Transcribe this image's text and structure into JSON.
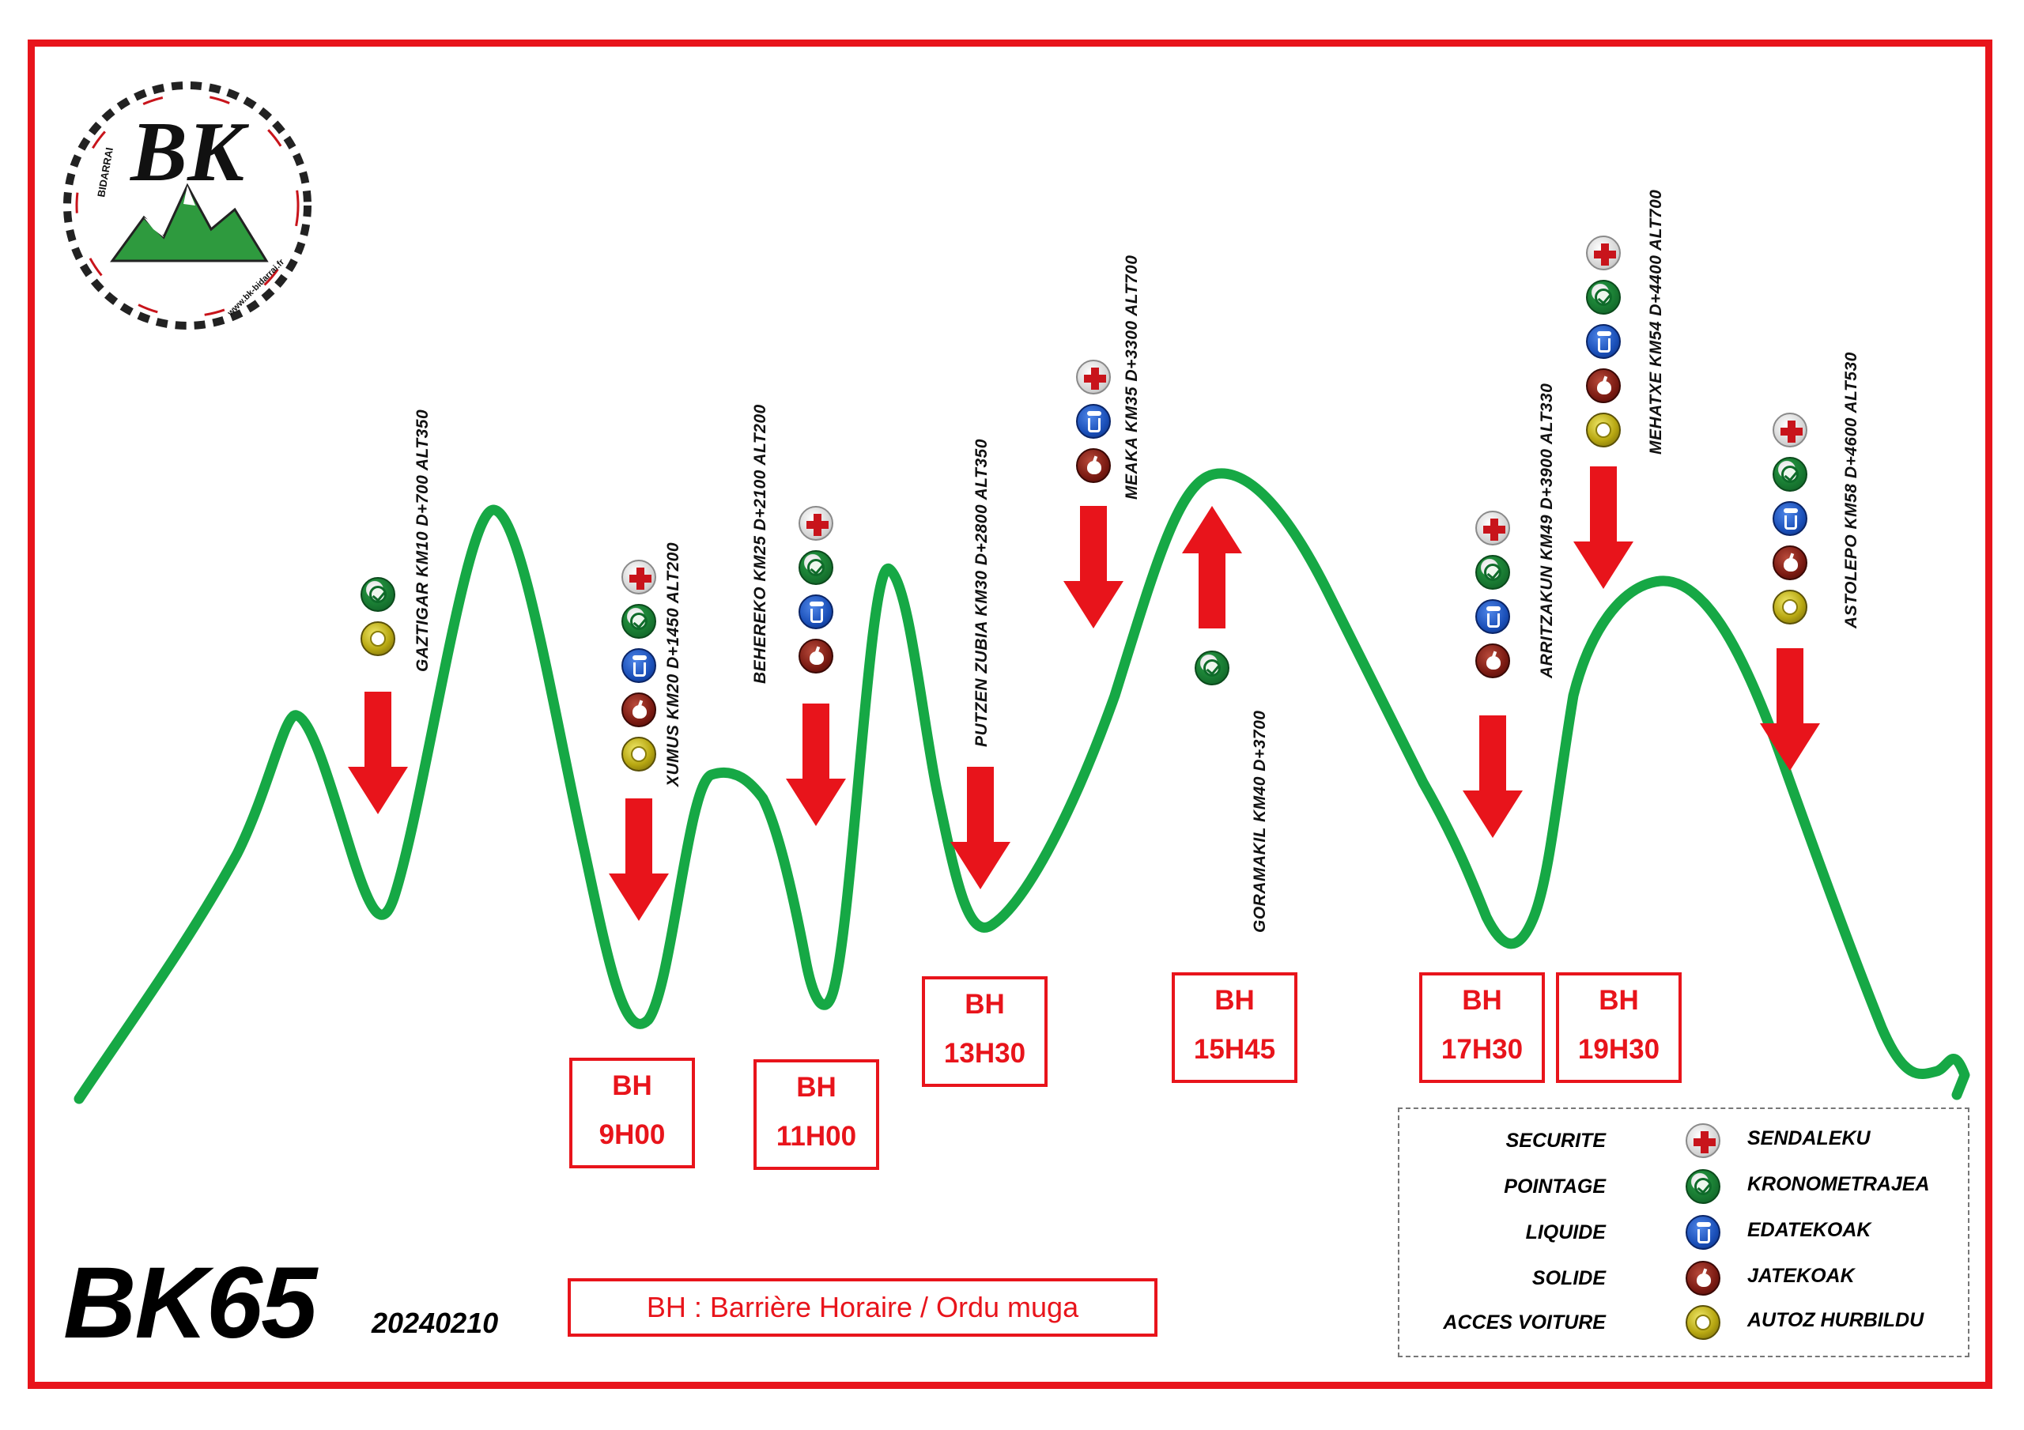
{
  "title": "BK65",
  "date": "20240210",
  "bh_legend": "BH : Barrière Horaire / Ordu muga",
  "logo": {
    "name": "BK",
    "ring_text": "BIDARRAI",
    "url_text": "www.bk-bidarrai.fr"
  },
  "colors": {
    "frame": "#e8141b",
    "profile": "#16a845",
    "arrow": "#e8141b",
    "bh": "#e8141b"
  },
  "checkpoints": [
    {
      "label": "GAZTIGAR KM10 D+700 ALT350",
      "icons": [
        "check-icon",
        "car-icon"
      ]
    },
    {
      "label": "XUMUS KM20 D+1450 ALT200",
      "icons": [
        "cross-icon",
        "check-icon",
        "drink-icon",
        "food-icon",
        "car-icon"
      ]
    },
    {
      "label": "BEHEREKO KM25 D+2100 ALT200",
      "icons": [
        "cross-icon",
        "check-icon",
        "drink-icon",
        "food-icon"
      ]
    },
    {
      "label": "PUTZEN ZUBIA KM30 D+2800 ALT350",
      "icons": []
    },
    {
      "label": "MEAKA KM35 D+3300 ALT700",
      "icons": [
        "cross-icon",
        "drink-icon",
        "food-icon"
      ]
    },
    {
      "label": "GORAMAKIL KM40 D+3700",
      "icons": [
        "check-icon"
      ]
    },
    {
      "label": "ARRITZAKUN KM49 D+3900 ALT330",
      "icons": [
        "cross-icon",
        "check-icon",
        "drink-icon",
        "food-icon"
      ]
    },
    {
      "label": "MEHATXE KM54 D+4400 ALT700",
      "icons": [
        "cross-icon",
        "check-icon",
        "drink-icon",
        "food-icon",
        "car-icon"
      ]
    },
    {
      "label": "ASTOLEPO KM58 D+4600 ALT530",
      "icons": [
        "cross-icon",
        "check-icon",
        "drink-icon",
        "food-icon",
        "car-icon"
      ]
    }
  ],
  "time_barriers": [
    {
      "label": "BH",
      "time": "9H00"
    },
    {
      "label": "BH",
      "time": "11H00"
    },
    {
      "label": "BH",
      "time": "13H30"
    },
    {
      "label": "BH",
      "time": "15H45"
    },
    {
      "label": "BH",
      "time": "17H30"
    },
    {
      "label": "BH",
      "time": "19H30"
    }
  ],
  "legend": [
    {
      "fr": "SECURITE",
      "eu": "SENDALEKU",
      "icon": "cross-icon"
    },
    {
      "fr": "POINTAGE",
      "eu": "KRONOMETRAJEA",
      "icon": "check-icon"
    },
    {
      "fr": "LIQUIDE",
      "eu": "EDATEKOAK",
      "icon": "drink-icon"
    },
    {
      "fr": "SOLIDE",
      "eu": "JATEKOAK",
      "icon": "food-icon"
    },
    {
      "fr": "ACCES VOITURE",
      "eu": "AUTOZ HURBILDU",
      "icon": "car-icon"
    }
  ]
}
